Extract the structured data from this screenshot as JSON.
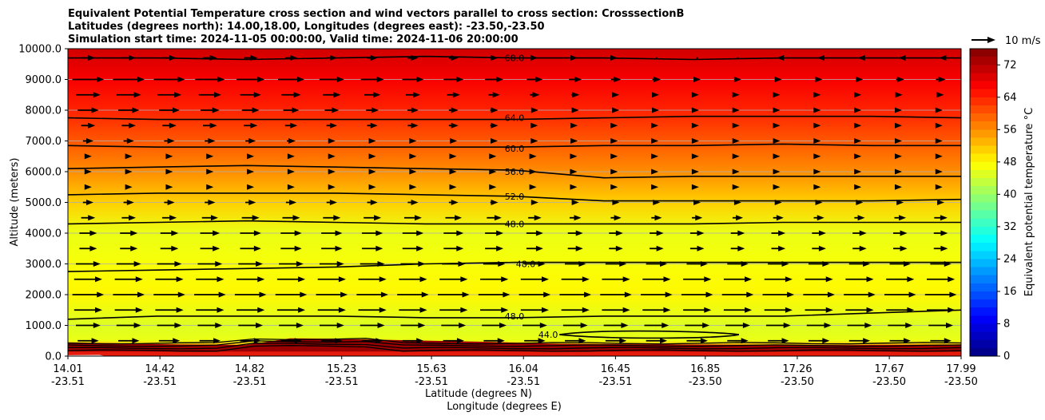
{
  "chart_data": {
    "type": "heatmap",
    "title_lines": [
      "Equivalent Potential Temperature cross section and wind vectors parallel to cross section: CrosssectionB",
      "Latitudes (degrees north): 14.00,18.00, Longitudes (degrees east): -23.50,-23.50",
      "Simulation start time: 2024-11-05 00:00:00, Valid time: 2024-11-06 20:00:00"
    ],
    "xlabel_lines": [
      "Latitude (degrees N)",
      "Longitude (degrees E)"
    ],
    "ylabel": "Altitude (meters)",
    "colorbar_label": "Equivalent potential temperature $^\\circ$C",
    "x_ticks": [
      {
        "lat": "14.01",
        "lon": "-23.51",
        "value": 14.01
      },
      {
        "lat": "14.42",
        "lon": "-23.51",
        "value": 14.42
      },
      {
        "lat": "14.82",
        "lon": "-23.51",
        "value": 14.82
      },
      {
        "lat": "15.23",
        "lon": "-23.51",
        "value": 15.23
      },
      {
        "lat": "15.63",
        "lon": "-23.51",
        "value": 15.63
      },
      {
        "lat": "16.04",
        "lon": "-23.51",
        "value": 16.04
      },
      {
        "lat": "16.45",
        "lon": "-23.51",
        "value": 16.45
      },
      {
        "lat": "16.85",
        "lon": "-23.50",
        "value": 16.85
      },
      {
        "lat": "17.26",
        "lon": "-23.50",
        "value": 17.26
      },
      {
        "lat": "17.67",
        "lon": "-23.50",
        "value": 17.67
      },
      {
        "lat": "17.99",
        "lon": "-23.50",
        "value": 17.99
      }
    ],
    "xlim": [
      14.01,
      17.99
    ],
    "y_ticks": [
      "0.0",
      "1000.0",
      "2000.0",
      "3000.0",
      "4000.0",
      "5000.0",
      "6000.0",
      "7000.0",
      "8000.0",
      "9000.0",
      "10000.0"
    ],
    "ylim": [
      0,
      10000
    ],
    "grid": "horizontal",
    "colorbar_ticks": [
      "0",
      "8",
      "16",
      "24",
      "32",
      "40",
      "48",
      "56",
      "64",
      "72"
    ],
    "colorbar_range": [
      0,
      76
    ],
    "quiver_key_label": "10 m/s",
    "temperature_bands": [
      {
        "z": 0,
        "t": 70
      },
      {
        "z": 300,
        "t": 56
      },
      {
        "z": 500,
        "t": 46
      },
      {
        "z": 1000,
        "t": 45
      },
      {
        "z": 2000,
        "t": 48
      },
      {
        "z": 3000,
        "t": 47
      },
      {
        "z": 4000,
        "t": 46
      },
      {
        "z": 5000,
        "t": 51
      },
      {
        "z": 6000,
        "t": 56
      },
      {
        "z": 7000,
        "t": 60
      },
      {
        "z": 8000,
        "t": 64
      },
      {
        "z": 9000,
        "t": 67
      },
      {
        "z": 10000,
        "t": 70
      }
    ],
    "contour_labels": [
      {
        "text": "68.0",
        "x": 16.0,
        "z": 9700
      },
      {
        "text": "64.0",
        "x": 16.0,
        "z": 7750
      },
      {
        "text": "60.0",
        "x": 16.0,
        "z": 6750
      },
      {
        "text": "56.0",
        "x": 16.0,
        "z": 6000
      },
      {
        "text": "52.0",
        "x": 16.0,
        "z": 5200
      },
      {
        "text": "48.0",
        "x": 16.0,
        "z": 4300
      },
      {
        "text": "48.0",
        "x": 16.05,
        "z": 3000
      },
      {
        "text": "48.0",
        "x": 16.0,
        "z": 1300
      },
      {
        "text": "44.0",
        "x": 16.15,
        "z": 700
      }
    ],
    "contour_lines": [
      {
        "z": [
          9700,
          9700,
          9650,
          9700,
          9750,
          9700,
          9700,
          9650,
          9700,
          9700,
          9700
        ]
      },
      {
        "z": [
          7750,
          7700,
          7700,
          7700,
          7700,
          7700,
          7750,
          7800,
          7800,
          7800,
          7750
        ]
      },
      {
        "z": [
          6850,
          6800,
          6800,
          6800,
          6800,
          6800,
          6850,
          6850,
          6900,
          6850,
          6850
        ]
      },
      {
        "z": [
          6100,
          6150,
          6200,
          6150,
          6100,
          6050,
          5800,
          5850,
          5850,
          5850,
          5850
        ]
      },
      {
        "z": [
          5250,
          5300,
          5300,
          5300,
          5250,
          5200,
          5050,
          5050,
          5050,
          5050,
          5100
        ]
      },
      {
        "z": [
          4300,
          4350,
          4400,
          4350,
          4300,
          4300,
          4300,
          4300,
          4350,
          4350,
          4350
        ]
      },
      {
        "z": [
          2750,
          2800,
          2850,
          2900,
          3000,
          3050,
          3050,
          3050,
          3050,
          3050,
          3050
        ]
      },
      {
        "z": [
          1200,
          1300,
          1300,
          1300,
          1250,
          1250,
          1300,
          1300,
          1300,
          1400,
          1500
        ]
      }
    ],
    "wind_rows": [
      {
        "z": 9700,
        "u": [
          4,
          4,
          4,
          3,
          3,
          2,
          1,
          0,
          -1,
          -1,
          -1
        ]
      },
      {
        "z": 9000,
        "u": [
          9,
          9,
          8,
          7,
          6,
          5,
          3,
          2,
          2,
          2,
          3
        ]
      },
      {
        "z": 8500,
        "u": [
          7,
          7,
          6,
          5,
          4,
          3,
          2,
          1,
          1,
          1,
          2
        ]
      },
      {
        "z": 8000,
        "u": [
          6,
          6,
          5,
          4,
          3,
          2,
          2,
          1,
          1,
          1,
          1
        ]
      },
      {
        "z": 7500,
        "u": [
          4,
          4,
          4,
          3,
          3,
          2,
          1,
          1,
          1,
          1,
          1
        ]
      },
      {
        "z": 7000,
        "u": [
          3,
          3,
          3,
          2,
          2,
          2,
          1,
          1,
          1,
          1,
          1
        ]
      },
      {
        "z": 6500,
        "u": [
          2,
          2,
          2,
          2,
          2,
          1,
          1,
          1,
          1,
          1,
          1
        ]
      },
      {
        "z": 6000,
        "u": [
          2,
          2,
          2,
          2,
          2,
          1,
          1,
          1,
          1,
          1,
          1
        ]
      },
      {
        "z": 5500,
        "u": [
          2,
          2,
          2,
          2,
          2,
          1,
          1,
          1,
          1,
          1,
          1
        ]
      },
      {
        "z": 5000,
        "u": [
          3,
          3,
          3,
          3,
          3,
          2,
          2,
          2,
          2,
          2,
          2
        ]
      },
      {
        "z": 4500,
        "u": [
          4,
          4,
          5,
          5,
          5,
          4,
          3,
          3,
          3,
          3,
          4
        ]
      },
      {
        "z": 4000,
        "u": [
          5,
          5,
          6,
          6,
          6,
          5,
          4,
          4,
          4,
          4,
          4
        ]
      },
      {
        "z": 3500,
        "u": [
          5,
          5,
          6,
          6,
          6,
          5,
          4,
          4,
          4,
          4,
          4
        ]
      },
      {
        "z": 3000,
        "u": [
          7,
          7,
          7,
          7,
          7,
          6,
          6,
          6,
          6,
          6,
          6
        ]
      },
      {
        "z": 2500,
        "u": [
          8,
          8,
          8,
          8,
          8,
          8,
          8,
          8,
          8,
          8,
          8
        ]
      },
      {
        "z": 2000,
        "u": [
          9,
          9,
          9,
          9,
          9,
          9,
          9,
          9,
          9,
          9,
          9
        ]
      },
      {
        "z": 1500,
        "u": [
          8,
          8,
          8,
          8,
          8,
          8,
          8,
          8,
          8,
          8,
          8
        ]
      },
      {
        "z": 1000,
        "u": [
          7,
          7,
          7,
          7,
          7,
          7,
          7,
          7,
          7,
          7,
          7
        ]
      },
      {
        "z": 500,
        "u": [
          6,
          6,
          6,
          6,
          6,
          6,
          6,
          6,
          6,
          6,
          6
        ]
      }
    ]
  }
}
